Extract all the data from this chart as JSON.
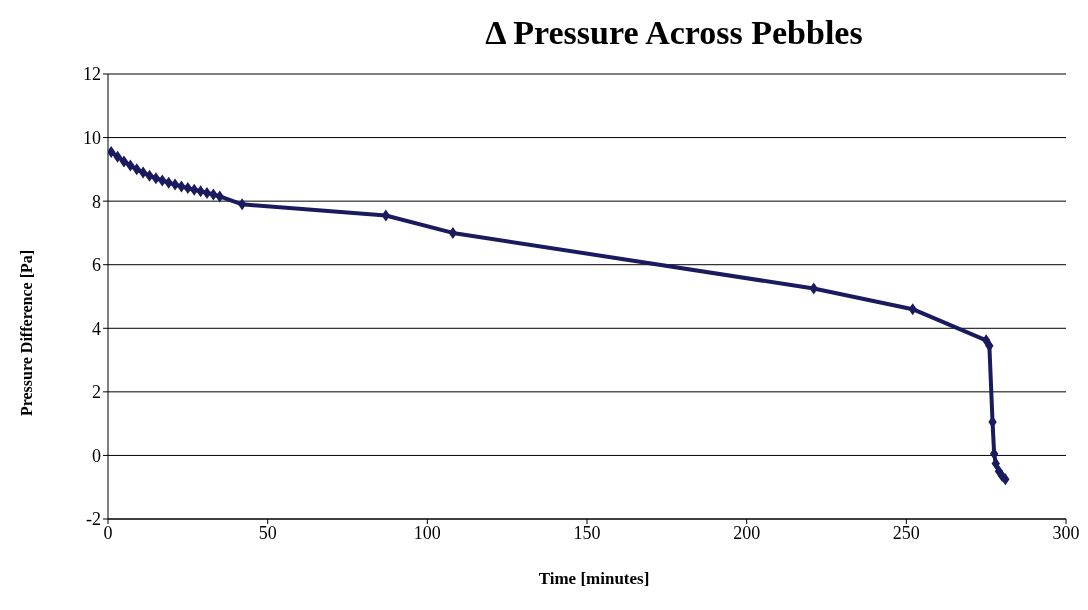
{
  "chart_data": {
    "type": "line",
    "title": "Δ Pressure Across Pebbles",
    "xlabel": "Time [minutes]",
    "ylabel": "Pressure Difference [Pa]",
    "x": [
      1,
      3,
      5,
      7,
      9,
      11,
      13,
      15,
      17,
      19,
      21,
      23,
      25,
      27,
      29,
      31,
      33,
      35,
      42,
      87,
      108,
      221,
      252,
      275,
      276,
      277,
      277.5,
      278,
      279,
      280,
      281
    ],
    "series": [
      {
        "color": "#1a1a5e",
        "values": [
          9.55,
          9.4,
          9.25,
          9.12,
          9.0,
          8.9,
          8.8,
          8.72,
          8.65,
          8.58,
          8.52,
          8.46,
          8.41,
          8.36,
          8.31,
          8.26,
          8.21,
          8.15,
          7.9,
          7.55,
          7.0,
          5.25,
          4.6,
          3.62,
          3.45,
          1.05,
          0.05,
          -0.25,
          -0.5,
          -0.65,
          -0.75
        ]
      }
    ],
    "xlim": [
      0,
      300
    ],
    "xticks": [
      0,
      50,
      100,
      150,
      200,
      250,
      300
    ],
    "ylim": [
      -2,
      12
    ],
    "yticks": [
      -2,
      0,
      2,
      4,
      6,
      8,
      10,
      12
    ],
    "grid": "y",
    "legend": false,
    "marker": "diamond",
    "line_style": "solid"
  }
}
